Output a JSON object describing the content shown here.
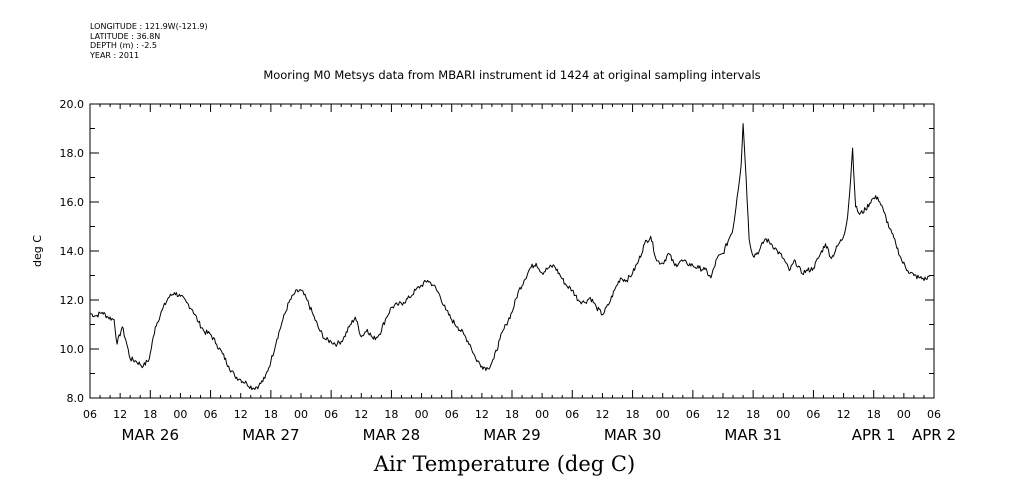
{
  "header": {
    "lines": [
      "LONGITUDE : 121.9W(-121.9)",
      "LATITUDE : 36.8N",
      "DEPTH (m) : -2.5",
      "YEAR : 2011"
    ]
  },
  "caption": "Air Temperature (deg C)",
  "chart_data": {
    "type": "line",
    "title": "Mooring M0 Metsys data from MBARI instrument id 1424 at original sampling intervals",
    "xlabel": "",
    "ylabel": "deg C",
    "xlim_hours": [
      0,
      84
    ],
    "ylim": [
      8.0,
      20.0
    ],
    "grid": false,
    "legend": "none",
    "line_color": "#000000",
    "x_unit": "hours since MAR 26 06:00 (2011)",
    "yticks": [
      "8.0",
      "10.0",
      "12.0",
      "14.0",
      "16.0",
      "18.0",
      "20.0"
    ],
    "xticks": [
      "06",
      "12",
      "18",
      "00",
      "06",
      "12",
      "18",
      "00",
      "06",
      "12",
      "18",
      "00",
      "06",
      "12",
      "18",
      "00",
      "06",
      "12",
      "18",
      "00",
      "06",
      "12",
      "18",
      "00",
      "06",
      "12",
      "18",
      "00",
      "06"
    ],
    "day_labels": [
      {
        "label": "MAR 26",
        "hour": 6
      },
      {
        "label": "MAR 27",
        "hour": 18
      },
      {
        "label": "MAR 28",
        "hour": 30
      },
      {
        "label": "MAR 29",
        "hour": 42
      },
      {
        "label": "MAR 30",
        "hour": 54
      },
      {
        "label": "MAR 31",
        "hour": 66
      },
      {
        "label": "APR  1",
        "hour": 78
      },
      {
        "label": "APR  2",
        "hour": 84
      }
    ],
    "series": [
      {
        "values": [
          [
            0.0,
            11.45
          ],
          [
            0.6,
            11.35
          ],
          [
            1.2,
            11.5
          ],
          [
            1.8,
            11.3
          ],
          [
            2.4,
            11.2
          ],
          [
            2.7,
            10.2
          ],
          [
            3.2,
            10.9
          ],
          [
            3.6,
            10.3
          ],
          [
            4.0,
            9.6
          ],
          [
            4.6,
            9.5
          ],
          [
            5.3,
            9.3
          ],
          [
            5.9,
            9.6
          ],
          [
            6.5,
            10.9
          ],
          [
            7.2,
            11.6
          ],
          [
            7.8,
            12.1
          ],
          [
            8.4,
            12.3
          ],
          [
            9.0,
            12.15
          ],
          [
            9.6,
            11.9
          ],
          [
            10.2,
            11.6
          ],
          [
            10.8,
            11.1
          ],
          [
            11.4,
            10.7
          ],
          [
            12.0,
            10.6
          ],
          [
            12.6,
            10.2
          ],
          [
            13.2,
            9.8
          ],
          [
            13.8,
            9.3
          ],
          [
            14.4,
            8.9
          ],
          [
            15.0,
            8.75
          ],
          [
            15.6,
            8.6
          ],
          [
            16.2,
            8.4
          ],
          [
            16.8,
            8.5
          ],
          [
            17.4,
            8.8
          ],
          [
            18.0,
            9.5
          ],
          [
            18.6,
            10.4
          ],
          [
            19.2,
            11.2
          ],
          [
            19.8,
            11.9
          ],
          [
            20.4,
            12.3
          ],
          [
            21.0,
            12.4
          ],
          [
            21.6,
            12.0
          ],
          [
            22.2,
            11.4
          ],
          [
            22.8,
            10.8
          ],
          [
            23.4,
            10.4
          ],
          [
            24.0,
            10.3
          ],
          [
            24.6,
            10.2
          ],
          [
            25.2,
            10.4
          ],
          [
            25.8,
            10.9
          ],
          [
            26.4,
            11.3
          ],
          [
            27.0,
            10.5
          ],
          [
            27.6,
            10.8
          ],
          [
            28.2,
            10.4
          ],
          [
            28.8,
            10.6
          ],
          [
            29.4,
            11.2
          ],
          [
            30.0,
            11.7
          ],
          [
            30.6,
            11.8
          ],
          [
            31.2,
            11.9
          ],
          [
            31.8,
            12.1
          ],
          [
            32.4,
            12.4
          ],
          [
            33.0,
            12.6
          ],
          [
            33.6,
            12.8
          ],
          [
            34.2,
            12.6
          ],
          [
            34.8,
            12.2
          ],
          [
            35.4,
            11.6
          ],
          [
            36.0,
            11.2
          ],
          [
            36.6,
            10.9
          ],
          [
            37.2,
            10.6
          ],
          [
            37.8,
            10.2
          ],
          [
            38.4,
            9.6
          ],
          [
            39.0,
            9.3
          ],
          [
            39.6,
            9.2
          ],
          [
            40.2,
            9.6
          ],
          [
            40.8,
            10.4
          ],
          [
            41.4,
            11.0
          ],
          [
            42.0,
            11.5
          ],
          [
            42.6,
            12.3
          ],
          [
            43.2,
            12.8
          ],
          [
            43.8,
            13.3
          ],
          [
            44.4,
            13.5
          ],
          [
            45.0,
            13.1
          ],
          [
            45.6,
            13.3
          ],
          [
            46.2,
            13.4
          ],
          [
            46.8,
            13.0
          ],
          [
            47.4,
            12.6
          ],
          [
            48.0,
            12.4
          ],
          [
            48.6,
            12.0
          ],
          [
            49.2,
            11.9
          ],
          [
            49.8,
            12.1
          ],
          [
            50.4,
            11.7
          ],
          [
            51.0,
            11.4
          ],
          [
            51.6,
            11.8
          ],
          [
            52.2,
            12.4
          ],
          [
            52.8,
            12.9
          ],
          [
            53.4,
            12.8
          ],
          [
            54.0,
            13.1
          ],
          [
            54.6,
            13.6
          ],
          [
            55.2,
            14.3
          ],
          [
            55.8,
            14.6
          ],
          [
            56.4,
            13.6
          ],
          [
            57.0,
            13.5
          ],
          [
            57.6,
            13.9
          ],
          [
            58.2,
            13.4
          ],
          [
            58.8,
            13.6
          ],
          [
            59.4,
            13.5
          ],
          [
            60.0,
            13.4
          ],
          [
            60.6,
            13.3
          ],
          [
            61.2,
            13.25
          ],
          [
            61.8,
            12.9
          ],
          [
            62.4,
            13.7
          ],
          [
            63.0,
            13.9
          ],
          [
            63.6,
            14.5
          ],
          [
            64.0,
            14.9
          ],
          [
            64.4,
            16.2
          ],
          [
            64.8,
            17.5
          ],
          [
            65.0,
            19.2
          ],
          [
            65.3,
            17.0
          ],
          [
            65.6,
            14.5
          ],
          [
            66.0,
            13.8
          ],
          [
            66.6,
            14.0
          ],
          [
            67.2,
            14.5
          ],
          [
            67.8,
            14.3
          ],
          [
            68.4,
            14.0
          ],
          [
            69.0,
            13.7
          ],
          [
            69.6,
            13.2
          ],
          [
            70.2,
            13.6
          ],
          [
            70.8,
            13.1
          ],
          [
            71.4,
            13.2
          ],
          [
            72.0,
            13.3
          ],
          [
            72.6,
            13.8
          ],
          [
            73.2,
            14.3
          ],
          [
            73.8,
            13.7
          ],
          [
            74.4,
            14.2
          ],
          [
            75.0,
            14.6
          ],
          [
            75.4,
            15.4
          ],
          [
            75.7,
            16.9
          ],
          [
            75.9,
            18.2
          ],
          [
            76.2,
            15.8
          ],
          [
            76.6,
            15.5
          ],
          [
            77.2,
            15.7
          ],
          [
            77.8,
            16.1
          ],
          [
            78.4,
            16.2
          ],
          [
            79.0,
            15.6
          ],
          [
            79.6,
            14.9
          ],
          [
            80.2,
            14.3
          ],
          [
            80.8,
            13.6
          ],
          [
            81.4,
            13.2
          ],
          [
            82.0,
            13.0
          ],
          [
            82.6,
            12.9
          ],
          [
            83.2,
            12.85
          ],
          [
            83.6,
            13.0
          ]
        ]
      }
    ]
  }
}
